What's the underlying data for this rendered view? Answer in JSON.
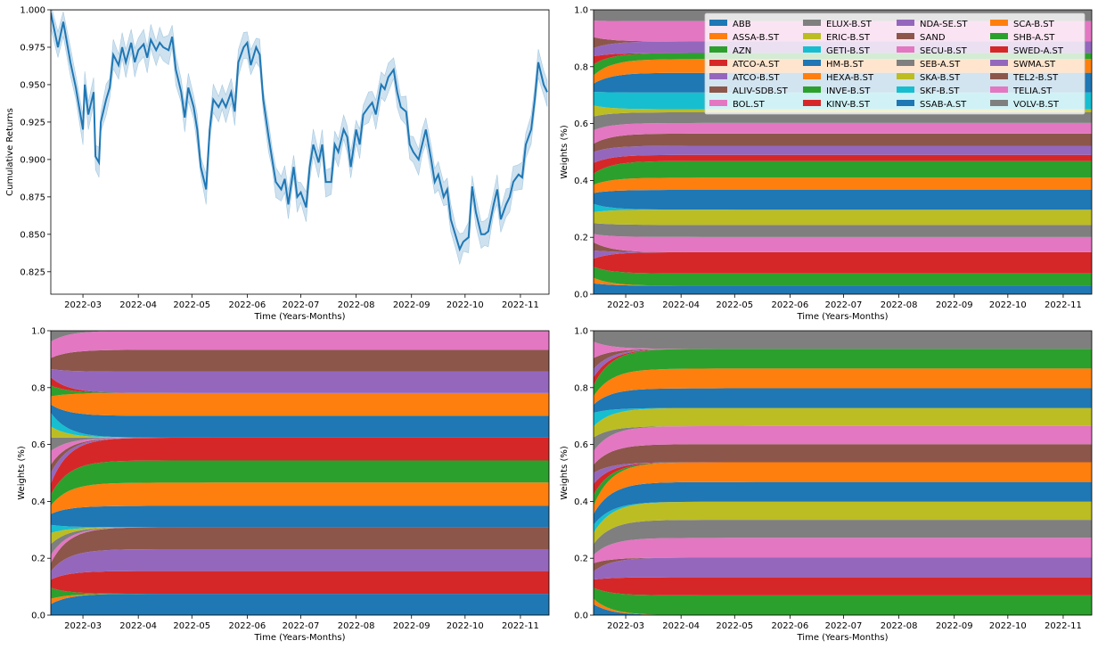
{
  "chart_data": [
    {
      "type": "line",
      "panel": "top-left",
      "xlabel": "Time (Years-Months)",
      "ylabel": "Cumulative Returns",
      "xlim": [
        "2022-02-11",
        "2022-11-17"
      ],
      "ylim": [
        0.81,
        1.0
      ],
      "xticks": [
        {
          "date": "2022-03-01",
          "label": "2022-03"
        },
        {
          "date": "2022-04-01",
          "label": "2022-04"
        },
        {
          "date": "2022-05-01",
          "label": "2022-05"
        },
        {
          "date": "2022-06-01",
          "label": "2022-06"
        },
        {
          "date": "2022-07-01",
          "label": "2022-07"
        },
        {
          "date": "2022-08-01",
          "label": "2022-08"
        },
        {
          "date": "2022-09-01",
          "label": "2022-09"
        },
        {
          "date": "2022-10-01",
          "label": "2022-10"
        },
        {
          "date": "2022-11-01",
          "label": "2022-11"
        }
      ],
      "yticks": [
        {
          "value": 0.825,
          "label": "0.825"
        },
        {
          "value": 0.85,
          "label": "0.850"
        },
        {
          "value": 0.875,
          "label": "0.875"
        },
        {
          "value": 0.9,
          "label": "0.900"
        },
        {
          "value": 0.925,
          "label": "0.925"
        },
        {
          "value": 0.95,
          "label": "0.950"
        },
        {
          "value": 0.975,
          "label": "0.975"
        },
        {
          "value": 1.0,
          "label": "1.000"
        }
      ],
      "reference_line": 1.0,
      "line_color": "#1f77b4",
      "band_color": "#1f77b4",
      "band_halfwidth": 0.008,
      "series": [
        {
          "x": [
            "2022-02-11",
            "2022-02-15",
            "2022-02-18",
            "2022-02-22",
            "2022-02-25",
            "2022-03-01",
            "2022-03-02",
            "2022-03-04",
            "2022-03-07",
            "2022-03-08",
            "2022-03-10",
            "2022-03-11",
            "2022-03-14",
            "2022-03-16",
            "2022-03-18",
            "2022-03-21",
            "2022-03-23",
            "2022-03-25",
            "2022-03-28",
            "2022-03-30",
            "2022-04-01",
            "2022-04-04",
            "2022-04-06",
            "2022-04-08",
            "2022-04-11",
            "2022-04-13",
            "2022-04-15",
            "2022-04-18",
            "2022-04-20",
            "2022-04-22",
            "2022-04-25",
            "2022-04-27",
            "2022-04-29",
            "2022-05-02",
            "2022-05-04",
            "2022-05-06",
            "2022-05-09",
            "2022-05-11",
            "2022-05-13",
            "2022-05-16",
            "2022-05-18",
            "2022-05-20",
            "2022-05-23",
            "2022-05-25",
            "2022-05-27",
            "2022-05-30",
            "2022-06-01",
            "2022-06-03",
            "2022-06-06",
            "2022-06-08",
            "2022-06-10",
            "2022-06-13",
            "2022-06-15",
            "2022-06-17",
            "2022-06-20",
            "2022-06-22",
            "2022-06-24",
            "2022-06-27",
            "2022-06-29",
            "2022-07-01",
            "2022-07-04",
            "2022-07-06",
            "2022-07-08",
            "2022-07-11",
            "2022-07-13",
            "2022-07-15",
            "2022-07-18",
            "2022-07-20",
            "2022-07-22",
            "2022-07-25",
            "2022-07-27",
            "2022-07-29",
            "2022-08-01",
            "2022-08-03",
            "2022-08-05",
            "2022-08-08",
            "2022-08-10",
            "2022-08-12",
            "2022-08-15",
            "2022-08-17",
            "2022-08-19",
            "2022-08-22",
            "2022-08-24",
            "2022-08-26",
            "2022-08-29",
            "2022-08-31",
            "2022-09-02",
            "2022-09-05",
            "2022-09-07",
            "2022-09-09",
            "2022-09-12",
            "2022-09-14",
            "2022-09-16",
            "2022-09-19",
            "2022-09-21",
            "2022-09-23",
            "2022-09-26",
            "2022-09-28",
            "2022-09-30",
            "2022-10-03",
            "2022-10-05",
            "2022-10-07",
            "2022-10-10",
            "2022-10-12",
            "2022-10-14",
            "2022-10-17",
            "2022-10-19",
            "2022-10-21",
            "2022-10-24",
            "2022-10-26",
            "2022-10-28",
            "2022-10-31",
            "2022-11-02",
            "2022-11-04",
            "2022-11-07",
            "2022-11-09",
            "2022-11-11",
            "2022-11-14",
            "2022-11-16"
          ],
          "y": [
            0.998,
            0.975,
            0.992,
            0.965,
            0.948,
            0.92,
            0.95,
            0.93,
            0.945,
            0.902,
            0.898,
            0.925,
            0.94,
            0.948,
            0.97,
            0.963,
            0.975,
            0.965,
            0.978,
            0.965,
            0.973,
            0.977,
            0.968,
            0.98,
            0.973,
            0.978,
            0.975,
            0.973,
            0.982,
            0.96,
            0.945,
            0.928,
            0.948,
            0.935,
            0.92,
            0.895,
            0.88,
            0.92,
            0.94,
            0.935,
            0.94,
            0.935,
            0.945,
            0.932,
            0.965,
            0.975,
            0.978,
            0.963,
            0.975,
            0.97,
            0.94,
            0.915,
            0.9,
            0.885,
            0.88,
            0.887,
            0.87,
            0.895,
            0.875,
            0.878,
            0.868,
            0.895,
            0.91,
            0.898,
            0.91,
            0.885,
            0.885,
            0.91,
            0.905,
            0.92,
            0.915,
            0.895,
            0.92,
            0.91,
            0.93,
            0.935,
            0.938,
            0.93,
            0.95,
            0.947,
            0.955,
            0.96,
            0.945,
            0.935,
            0.932,
            0.91,
            0.905,
            0.9,
            0.91,
            0.92,
            0.9,
            0.885,
            0.89,
            0.875,
            0.88,
            0.86,
            0.848,
            0.84,
            0.845,
            0.848,
            0.882,
            0.865,
            0.85,
            0.85,
            0.852,
            0.87,
            0.88,
            0.86,
            0.87,
            0.875,
            0.885,
            0.89,
            0.888,
            0.91,
            0.92,
            0.94,
            0.965,
            0.95,
            0.945
          ]
        }
      ]
    },
    {
      "type": "area",
      "panel": "top-right",
      "xlabel": "Time (Years-Months)",
      "ylabel": "Weights (%)",
      "xlim": [
        "2022-02-11",
        "2022-11-17"
      ],
      "ylim": [
        0,
        1
      ],
      "yticks": [
        {
          "value": 0.0,
          "label": "0.0"
        },
        {
          "value": 0.2,
          "label": "0.2"
        },
        {
          "value": 0.4,
          "label": "0.4"
        },
        {
          "value": 0.6,
          "label": "0.6"
        },
        {
          "value": 0.8,
          "label": "0.8"
        },
        {
          "value": 1.0,
          "label": "1.0"
        }
      ],
      "legend": {
        "location": "upper-right",
        "columns": 4,
        "entries": [
          "ABB",
          "ASSA-B.ST",
          "AZN",
          "ATCO-A.ST",
          "ATCO-B.ST",
          "ALIV-SDB.ST",
          "BOL.ST",
          "ELUX-B.ST",
          "ERIC-B.ST",
          "GETI-B.ST",
          "HM-B.ST",
          "HEXA-B.ST",
          "INVE-B.ST",
          "KINV-B.ST",
          "NDA-SE.ST",
          "SAND",
          "SECU-B.ST",
          "SEB-A.ST",
          "SKA-B.ST",
          "SKF-B.ST",
          "SSAB-A.ST",
          "SCA-B.ST",
          "SHB-A.ST",
          "SWED-A.ST",
          "SWMA.ST",
          "TEL2-B.ST",
          "TELIA.ST",
          "VOLV-B.ST"
        ]
      },
      "series_weights": {
        "start": [
          0.04,
          0.02,
          0.04,
          0.03,
          0.03,
          0.03,
          0.03,
          0.04,
          0.04,
          0.03,
          0.04,
          0.03,
          0.04,
          0.04,
          0.04,
          0.03,
          0.05,
          0.05,
          0.04,
          0.05,
          0.03,
          0.03,
          0.04,
          0.03,
          0.03,
          0.04,
          0.06,
          0.04
        ],
        "steady": [
          0.028,
          0.0,
          0.04,
          0.07,
          0.0,
          0.0,
          0.05,
          0.04,
          0.05,
          0.0,
          0.065,
          0.04,
          0.055,
          0.02,
          0.03,
          0.04,
          0.035,
          0.035,
          0.01,
          0.055,
          0.065,
          0.045,
          0.02,
          0.0,
          0.038,
          0.0,
          0.067,
          0.037
        ]
      }
    },
    {
      "type": "area",
      "panel": "bottom-left",
      "xlabel": "Time (Years-Months)",
      "ylabel": "Weights (%)",
      "xlim": [
        "2022-02-11",
        "2022-11-17"
      ],
      "ylim": [
        0,
        1
      ],
      "yticks": [
        {
          "value": 0.0,
          "label": "0.0"
        },
        {
          "value": 0.2,
          "label": "0.2"
        },
        {
          "value": 0.4,
          "label": "0.4"
        },
        {
          "value": 0.6,
          "label": "0.6"
        },
        {
          "value": 0.8,
          "label": "0.8"
        },
        {
          "value": 1.0,
          "label": "1.0"
        }
      ],
      "series_weights": {
        "start": [
          0.04,
          0.02,
          0.04,
          0.03,
          0.03,
          0.03,
          0.03,
          0.04,
          0.04,
          0.03,
          0.04,
          0.03,
          0.04,
          0.04,
          0.04,
          0.03,
          0.05,
          0.05,
          0.04,
          0.05,
          0.03,
          0.03,
          0.04,
          0.03,
          0.03,
          0.04,
          0.06,
          0.04
        ],
        "steady": [
          0.075,
          0.0,
          0.0,
          0.08,
          0.077,
          0.077,
          0.0,
          0.0,
          0.0,
          0.0,
          0.075,
          0.082,
          0.078,
          0.08,
          0.0,
          0.0,
          0.0,
          0.0,
          0.0,
          0.0,
          0.077,
          0.08,
          0.0,
          0.0,
          0.075,
          0.077,
          0.067,
          0.0
        ]
      }
    },
    {
      "type": "area",
      "panel": "bottom-right",
      "xlabel": "Time (Years-Months)",
      "ylabel": "Weights (%)",
      "xlim": [
        "2022-02-11",
        "2022-11-17"
      ],
      "ylim": [
        0,
        1
      ],
      "yticks": [
        {
          "value": 0.0,
          "label": "0.0"
        },
        {
          "value": 0.2,
          "label": "0.2"
        },
        {
          "value": 0.4,
          "label": "0.4"
        },
        {
          "value": 0.6,
          "label": "0.6"
        },
        {
          "value": 0.8,
          "label": "0.8"
        },
        {
          "value": 1.0,
          "label": "1.0"
        }
      ],
      "series_weights": {
        "start": [
          0.04,
          0.02,
          0.04,
          0.03,
          0.03,
          0.03,
          0.03,
          0.04,
          0.04,
          0.03,
          0.04,
          0.03,
          0.04,
          0.04,
          0.04,
          0.03,
          0.05,
          0.05,
          0.04,
          0.05,
          0.03,
          0.03,
          0.04,
          0.03,
          0.03,
          0.04,
          0.06,
          0.04
        ],
        "steady": [
          0.0,
          0.0,
          0.06,
          0.055,
          0.06,
          0.0,
          0.06,
          0.055,
          0.055,
          0.0,
          0.06,
          0.06,
          0.0,
          0.0,
          0.0,
          0.055,
          0.055,
          0.0,
          0.055,
          0.0,
          0.06,
          0.06,
          0.06,
          0.0,
          0.0,
          0.0,
          0.0,
          0.055
        ]
      }
    }
  ],
  "colors": [
    "#1f77b4",
    "#ff7f0e",
    "#2ca02c",
    "#d62728",
    "#9467bd",
    "#8c564b",
    "#e377c2",
    "#7f7f7f",
    "#bcbd22",
    "#17becf"
  ]
}
